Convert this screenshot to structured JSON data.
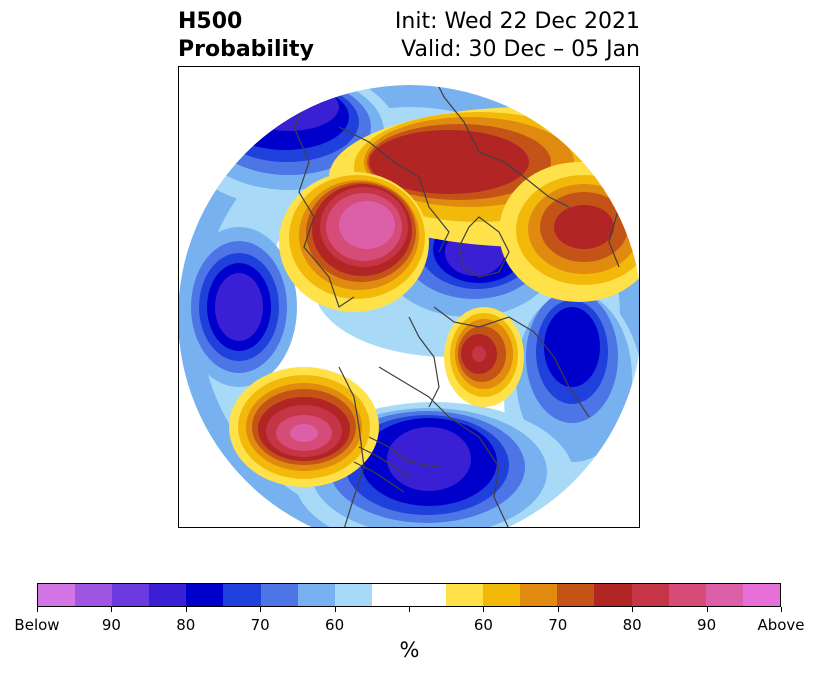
{
  "header": {
    "title_line1": "H500",
    "title_line2": "Probability",
    "init_text": "Init: Wed 22 Dec 2021",
    "valid_text": "Valid: 30 Dec – 05 Jan"
  },
  "colorbar": {
    "unit": "%",
    "colors": [
      "#d475e6",
      "#a055e0",
      "#6c3be0",
      "#3b1fd4",
      "#0000cc",
      "#2040dc",
      "#4d75e6",
      "#78b1f0",
      "#a8daf7",
      "#ffffff",
      "#ffffff",
      "#ffe24a",
      "#f2b90a",
      "#e08a10",
      "#c45318",
      "#b22525",
      "#c53545",
      "#d44c77",
      "#dc60a8",
      "#e670d8"
    ],
    "labels": [
      "Below",
      "90",
      "80",
      "70",
      "60",
      "60",
      "70",
      "80",
      "90",
      "Above"
    ]
  },
  "map": {
    "palette": {
      "blue_light": "#a8daf7",
      "blue_2": "#78b1f0",
      "blue_3": "#4d75e6",
      "blue_4": "#2040dc",
      "blue_5": "#0000cc",
      "blue_6": "#3b1fd4",
      "blue_7": "#6c3be0",
      "yellow": "#ffe24a",
      "gold": "#f2b90a",
      "orange": "#e08a10",
      "rust": "#c45318",
      "red": "#b22525",
      "red2": "#c53545",
      "pink": "#d44c77",
      "pink2": "#dc60a8"
    }
  }
}
